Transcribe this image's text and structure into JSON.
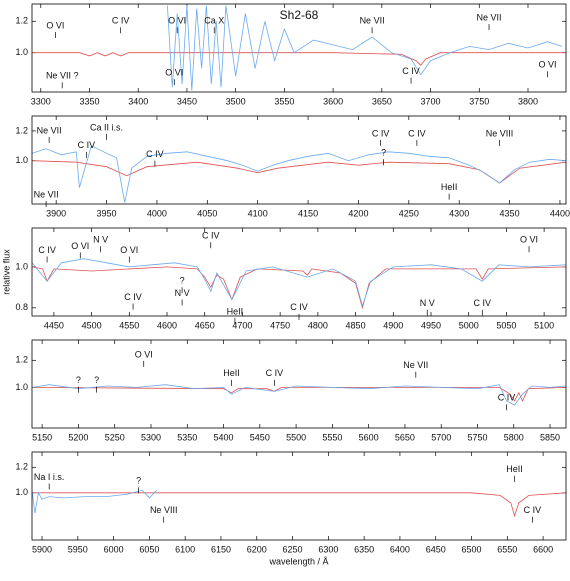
{
  "chart_data": [
    {
      "type": "line",
      "title": "Sh2-68",
      "xlim": [
        3291,
        3839
      ],
      "ylim": [
        0.75,
        1.31
      ],
      "xticks": [
        3300,
        3350,
        3400,
        3450,
        3500,
        3550,
        3600,
        3650,
        3700,
        3750,
        3800
      ],
      "yticks": [
        {
          "value": 1,
          "label": "1.0"
        },
        1.2
      ],
      "series": [
        {
          "color": "#e05050",
          "x": [
            3291,
            3340,
            3350,
            3358,
            3366,
            3374,
            3382,
            3390,
            3400,
            3600,
            3670,
            3685,
            3690,
            3695,
            3710,
            3839
          ],
          "values": [
            1.0,
            1.0,
            0.98,
            1.0,
            0.98,
            1.0,
            0.98,
            1.0,
            1.0,
            1.0,
            0.99,
            0.95,
            0.92,
            0.96,
            1.0,
            1.0
          ]
        },
        {
          "color": "#6aaaf0",
          "x": [
            3430,
            3435,
            3440,
            3445,
            3450,
            3455,
            3460,
            3465,
            3470,
            3475,
            3480,
            3485,
            3490,
            3500,
            3510,
            3520,
            3530,
            3540,
            3550,
            3560,
            3580,
            3600,
            3620,
            3640,
            3660,
            3680,
            3690,
            3700,
            3720,
            3740,
            3760,
            3780,
            3800,
            3820,
            3835
          ],
          "values": [
            1.3,
            0.78,
            1.25,
            0.8,
            1.3,
            0.76,
            1.28,
            0.9,
            1.3,
            0.8,
            1.2,
            0.78,
            1.3,
            0.85,
            1.25,
            0.9,
            1.2,
            0.95,
            1.15,
            1.0,
            1.08,
            1.05,
            1.02,
            1.1,
            1.0,
            0.96,
            0.86,
            0.95,
            1.0,
            1.04,
            1.02,
            1.06,
            1.03,
            1.07,
            1.04
          ]
        }
      ],
      "annotations": [
        {
          "text": "O VI",
          "x": 3315,
          "y": 1.17
        },
        {
          "text": "Ne VII ?",
          "x": 3322,
          "y": 0.85
        },
        {
          "text": "C IV",
          "x": 3382,
          "y": 1.2
        },
        {
          "text": "O VI",
          "x": 3440,
          "y": 1.2
        },
        {
          "text": "O VI",
          "x": 3437,
          "y": 0.87
        },
        {
          "text": "Ca X",
          "x": 3478,
          "y": 1.2
        },
        {
          "text": "Ne VII",
          "x": 3640,
          "y": 1.2
        },
        {
          "text": "C IV",
          "x": 3680,
          "y": 0.88
        },
        {
          "text": "Ne VII",
          "x": 3760,
          "y": 1.22
        },
        {
          "text": "O VI",
          "x": 3820,
          "y": 0.92
        }
      ]
    },
    {
      "type": "line",
      "xlim": [
        3876,
        4406
      ],
      "ylim": [
        0.71,
        1.3
      ],
      "xticks": [
        3900,
        3950,
        4000,
        4050,
        4100,
        4150,
        4200,
        4250,
        4300,
        4350,
        4400
      ],
      "yticks": [
        {
          "value": 1,
          "label": "1.0"
        },
        1.2
      ],
      "series": [
        {
          "color": "#e05050",
          "x": [
            3876,
            3920,
            3950,
            3970,
            3990,
            4040,
            4080,
            4100,
            4120,
            4170,
            4200,
            4230,
            4290,
            4320,
            4340,
            4360,
            4406
          ],
          "values": [
            1.0,
            0.99,
            0.96,
            0.9,
            0.96,
            0.99,
            0.95,
            0.92,
            0.95,
            0.99,
            0.97,
            0.99,
            0.98,
            0.94,
            0.85,
            0.95,
            0.99
          ]
        },
        {
          "color": "#6aaaf0",
          "x": [
            3876,
            3890,
            3905,
            3920,
            3923,
            3935,
            3950,
            3960,
            3968,
            3975,
            3990,
            4010,
            4030,
            4050,
            4070,
            4085,
            4100,
            4115,
            4130,
            4150,
            4170,
            4190,
            4210,
            4230,
            4250,
            4270,
            4290,
            4310,
            4325,
            4340,
            4355,
            4370,
            4390,
            4406
          ],
          "values": [
            1.05,
            1.08,
            1.04,
            1.06,
            0.82,
            1.1,
            1.05,
            1.02,
            0.72,
            0.95,
            1.03,
            1.05,
            1.06,
            1.03,
            1.0,
            0.97,
            0.93,
            0.97,
            1.0,
            1.03,
            1.05,
            1.0,
            1.04,
            1.06,
            1.05,
            1.03,
            1.02,
            0.97,
            0.92,
            0.85,
            0.94,
            0.99,
            1.01,
            1.0
          ]
        }
      ],
      "annotations": [
        {
          "text": "Ne VII",
          "x": 3893,
          "y": 1.2
        },
        {
          "text": "Ne VII",
          "x": 3890,
          "y": 0.77
        },
        {
          "text": "Ca II i.s.",
          "x": 3950,
          "y": 1.22
        },
        {
          "text": "C IV",
          "x": 3930,
          "y": 1.1
        },
        {
          "text": "C IV",
          "x": 3998,
          "y": 1.04
        },
        {
          "text": "C IV",
          "x": 4222,
          "y": 1.18
        },
        {
          "text": "C IV",
          "x": 4258,
          "y": 1.18
        },
        {
          "text": "?",
          "x": 4225,
          "y": 1.05
        },
        {
          "text": "Ne VIII",
          "x": 4340,
          "y": 1.18
        },
        {
          "text": "HeII",
          "x": 4290,
          "y": 0.82
        }
      ]
    },
    {
      "type": "line",
      "ylabel": "relative flux",
      "xlim": [
        4421,
        5129
      ],
      "ylim": [
        0.76,
        1.19
      ],
      "xticks": [
        4450,
        4500,
        4550,
        4600,
        4650,
        4700,
        4750,
        4800,
        4850,
        4900,
        4950,
        5000,
        5050,
        5100
      ],
      "yticks": [
        0.8,
        {
          "value": 1,
          "label": "1.0"
        }
      ],
      "series": [
        {
          "color": "#e05050",
          "x": [
            4421,
            4435,
            4441,
            4450,
            4500,
            4600,
            4640,
            4650,
            4658,
            4666,
            4675,
            4686,
            4697,
            4720,
            4780,
            4786,
            4792,
            4830,
            4850,
            4859,
            4868,
            4890,
            5010,
            5018,
            5026,
            5129
          ],
          "values": [
            1.0,
            0.99,
            0.93,
            0.99,
            0.98,
            1.0,
            0.99,
            0.95,
            0.9,
            0.96,
            0.94,
            0.84,
            0.95,
            0.99,
            0.98,
            0.96,
            0.99,
            0.97,
            0.92,
            0.8,
            0.92,
            0.99,
            0.99,
            0.94,
            0.99,
            1.0
          ]
        },
        {
          "color": "#6aaaf0",
          "x": [
            4421,
            4441,
            4460,
            4490,
            4520,
            4550,
            4580,
            4610,
            4640,
            4650,
            4658,
            4666,
            4686,
            4705,
            4740,
            4786,
            4820,
            4850,
            4859,
            4870,
            4900,
            4950,
            4990,
            5018,
            5040,
            5080,
            5129
          ],
          "values": [
            1.02,
            0.93,
            1.02,
            1.04,
            1.02,
            1.0,
            1.01,
            1.02,
            1.0,
            0.94,
            0.88,
            0.97,
            0.84,
            0.98,
            1.0,
            0.95,
            0.99,
            0.93,
            0.81,
            0.93,
            1.0,
            1.01,
            0.99,
            0.93,
            1.01,
            1.0,
            1.01
          ]
        }
      ],
      "annotations": [
        {
          "text": "C IV",
          "x": 4441,
          "y": 1.08
        },
        {
          "text": "O VI",
          "x": 4485,
          "y": 1.1
        },
        {
          "text": "N V",
          "x": 4512,
          "y": 1.13
        },
        {
          "text": "O VI",
          "x": 4550,
          "y": 1.08
        },
        {
          "text": "C IV",
          "x": 4658,
          "y": 1.15
        },
        {
          "text": "?",
          "x": 4620,
          "y": 0.93
        },
        {
          "text": "N V",
          "x": 4620,
          "y": 0.87
        },
        {
          "text": "C IV",
          "x": 4555,
          "y": 0.85
        },
        {
          "text": "HeII",
          "x": 4690,
          "y": 0.78
        },
        {
          "text": "C IV",
          "x": 4775,
          "y": 0.8
        },
        {
          "text": "N V",
          "x": 4945,
          "y": 0.82
        },
        {
          "text": "C IV",
          "x": 5018,
          "y": 0.82
        },
        {
          "text": "O VI",
          "x": 5080,
          "y": 1.13
        }
      ]
    },
    {
      "type": "line",
      "xlim": [
        5136,
        5872
      ],
      "ylim": [
        0.7,
        1.35
      ],
      "xticks": [
        5150,
        5200,
        5250,
        5300,
        5350,
        5400,
        5450,
        5500,
        5550,
        5600,
        5650,
        5700,
        5750,
        5800,
        5850
      ],
      "yticks": [
        {
          "value": 1,
          "label": "1.0"
        },
        1.2
      ],
      "series": [
        {
          "color": "#e05050",
          "x": [
            5136,
            5400,
            5411,
            5420,
            5460,
            5470,
            5480,
            5780,
            5795,
            5801,
            5807,
            5812,
            5820,
            5872
          ],
          "values": [
            1.0,
            0.99,
            0.96,
            0.99,
            0.99,
            0.97,
            1.0,
            1.0,
            0.95,
            0.9,
            0.96,
            0.9,
            0.99,
            1.0
          ]
        },
        {
          "color": "#6aaaf0",
          "x": [
            5136,
            5160,
            5200,
            5240,
            5280,
            5320,
            5360,
            5400,
            5411,
            5430,
            5470,
            5500,
            5550,
            5600,
            5650,
            5700,
            5750,
            5780,
            5790,
            5801,
            5812,
            5825,
            5850,
            5872
          ],
          "values": [
            1.0,
            1.02,
            0.99,
            1.01,
            1.0,
            1.02,
            0.99,
            1.0,
            0.95,
            1.0,
            0.97,
            1.01,
            1.0,
            0.99,
            1.01,
            1.0,
            0.99,
            1.02,
            0.9,
            0.87,
            0.95,
            1.01,
            1.0,
            1.01
          ]
        }
      ],
      "annotations": [
        {
          "text": "?",
          "x": 5200,
          "y": 1.05
        },
        {
          "text": "?",
          "x": 5225,
          "y": 1.05
        },
        {
          "text": "O VI",
          "x": 5290,
          "y": 1.24
        },
        {
          "text": "HeII",
          "x": 5411,
          "y": 1.1
        },
        {
          "text": "C IV",
          "x": 5470,
          "y": 1.1
        },
        {
          "text": "Ne VII",
          "x": 5665,
          "y": 1.16
        },
        {
          "text": "C IV",
          "x": 5790,
          "y": 0.92
        }
      ]
    },
    {
      "type": "line",
      "xlabel": "wavelength / Å",
      "xlim": [
        5886,
        6632
      ],
      "ylim": [
        0.63,
        1.32
      ],
      "xticks": [
        5900,
        5950,
        6000,
        6050,
        6100,
        6150,
        6200,
        6250,
        6300,
        6350,
        6400,
        6450,
        6500,
        6550,
        6600
      ],
      "yticks": [
        {
          "value": 1,
          "label": "1.0"
        },
        1.2
      ],
      "series": [
        {
          "color": "#e05050",
          "x": [
            5886,
            6500,
            6540,
            6555,
            6560,
            6566,
            6580,
            6632
          ],
          "values": [
            1.0,
            1.0,
            0.98,
            0.92,
            0.82,
            0.92,
            0.98,
            1.0
          ]
        },
        {
          "color": "#6aaaf0",
          "x": [
            5886,
            5890,
            5895,
            5900,
            5910,
            5930,
            5960,
            5990,
            6020,
            6040,
            6050,
            6060
          ],
          "values": [
            1.02,
            0.84,
            1.0,
            0.95,
            0.97,
            0.96,
            0.97,
            0.97,
            0.99,
            1.02,
            0.96,
            1.02
          ]
        }
      ],
      "annotations": [
        {
          "text": "Na I i.s.",
          "x": 5910,
          "y": 1.12
        },
        {
          "text": "?",
          "x": 6035,
          "y": 1.09
        },
        {
          "text": "Ne VIII",
          "x": 6070,
          "y": 0.86
        },
        {
          "text": "HeII",
          "x": 6560,
          "y": 1.18
        },
        {
          "text": "C IV",
          "x": 6585,
          "y": 0.86
        }
      ]
    }
  ]
}
